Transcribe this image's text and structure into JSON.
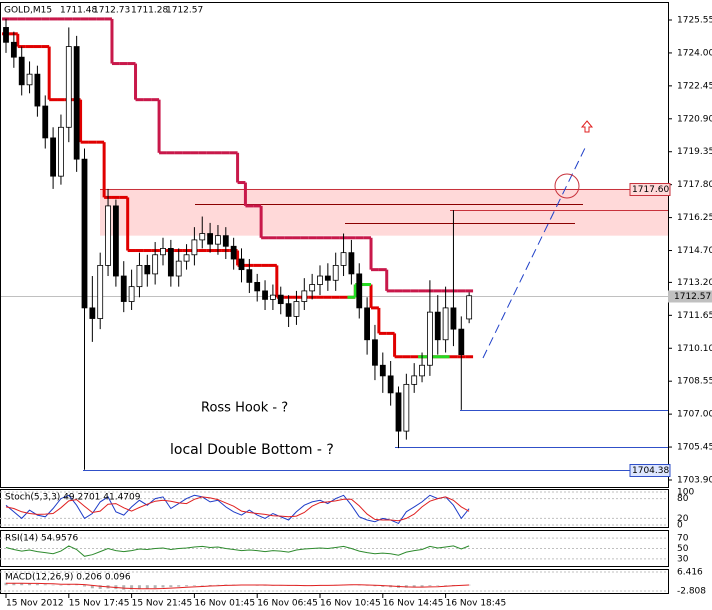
{
  "chart_data": {
    "type": "candlestick",
    "title": "GOLD,M15",
    "header_values": [
      1711.48,
      1712.73,
      1711.28,
      1712.57
    ],
    "categories": [
      "15 Nov 2012",
      null,
      null,
      null,
      null,
      null,
      null,
      null,
      "15 Nov 17:45",
      null,
      null,
      null,
      null,
      null,
      null,
      null,
      "15 Nov 21:45",
      null,
      null,
      null,
      null,
      null,
      null,
      null,
      "16 Nov 01:45",
      null,
      null,
      null,
      null,
      null,
      null,
      null,
      "16 Nov 06:45",
      null,
      null,
      null,
      null,
      null,
      null,
      null,
      "16 Nov 10:45",
      null,
      null,
      null,
      null,
      null,
      null,
      null,
      "16 Nov 14:45",
      null,
      null,
      null,
      null,
      null,
      null,
      null,
      "16 Nov 18:45",
      null,
      null,
      null
    ],
    "open": [
      1725.2,
      1724.5,
      1723.8,
      1722.5,
      1723,
      1721.5,
      1720,
      1718.2,
      1720.5,
      1724.3,
      1719,
      1712,
      1711.5,
      1714,
      1716.8,
      1713.5,
      1712.3,
      1713,
      1714,
      1713.6,
      1714.5,
      1714.8,
      1713.5,
      1714.2,
      1714.5,
      1715.2,
      1715.5,
      1715,
      1715.4,
      1714.9,
      1714.3,
      1713.8,
      1713.2,
      1712.8,
      1712.4,
      1712.6,
      1712.2,
      1711.6,
      1712.3,
      1712.8,
      1713.1,
      1713.5,
      1713.3,
      1714,
      1714.6,
      1713.6,
      1712,
      1710.5,
      1709.3,
      1708.8,
      1708,
      1706.2,
      1708.4,
      1708.8,
      1709.3,
      1711.8,
      1710.5,
      1712,
      1711,
      1711.48
    ],
    "high": [
      1725.6,
      1725.0,
      1724.3,
      1723.6,
      1723.4,
      1722.0,
      1720.5,
      1721.1,
      1725.2,
      1724.8,
      1719.5,
      1713.5,
      1714.6,
      1717.6,
      1717.1,
      1714.2,
      1713.8,
      1714.6,
      1714.5,
      1715.1,
      1715.3,
      1715.2,
      1714.8,
      1715.0,
      1715.8,
      1716.3,
      1716.0,
      1715.9,
      1715.8,
      1715.3,
      1714.8,
      1714.3,
      1713.6,
      1713.3,
      1713.1,
      1713.0,
      1712.6,
      1712.8,
      1713.4,
      1713.6,
      1714.0,
      1714.1,
      1714.6,
      1715.5,
      1715.2,
      1714.1,
      1712.5,
      1711.2,
      1709.9,
      1709.5,
      1708.3,
      1708.9,
      1709.4,
      1709.9,
      1713.3,
      1712.6,
      1713.0,
      1716.6,
      1711.6,
      1712.73
    ],
    "low": [
      1724.0,
      1723.3,
      1722.0,
      1722.1,
      1721.0,
      1719.5,
      1717.6,
      1717.8,
      1719.8,
      1718.4,
      1704.38,
      1710.4,
      1711.0,
      1713.5,
      1713.0,
      1711.8,
      1711.9,
      1712.5,
      1713.0,
      1713.1,
      1714.0,
      1713.0,
      1713.0,
      1713.8,
      1714.0,
      1714.8,
      1714.6,
      1714.5,
      1714.3,
      1713.8,
      1713.2,
      1712.7,
      1712.3,
      1711.9,
      1711.9,
      1711.7,
      1711.1,
      1711.2,
      1711.9,
      1712.4,
      1712.6,
      1712.8,
      1712.8,
      1713.5,
      1713.1,
      1711.5,
      1709.8,
      1708.6,
      1708.0,
      1707.4,
      1705.4,
      1705.8,
      1708.0,
      1708.5,
      1708.8,
      1709.8,
      1709.9,
      1710.2,
      1707.2,
      1711.28
    ],
    "close": [
      1724.5,
      1723.8,
      1722.5,
      1723,
      1721.5,
      1720,
      1718.2,
      1720.5,
      1724.3,
      1719,
      1712,
      1711.5,
      1714,
      1716.8,
      1713.5,
      1712.3,
      1713,
      1714,
      1713.6,
      1714.5,
      1714.8,
      1713.5,
      1714.2,
      1714.5,
      1715.2,
      1715.5,
      1715,
      1715.4,
      1714.9,
      1714.3,
      1713.8,
      1713.2,
      1712.8,
      1712.4,
      1712.6,
      1712.2,
      1711.6,
      1712.3,
      1712.8,
      1713.1,
      1713.5,
      1713.3,
      1714,
      1714.6,
      1713.6,
      1712,
      1710.5,
      1709.3,
      1708.8,
      1708,
      1706.2,
      1708.4,
      1708.8,
      1709.3,
      1711.8,
      1710.5,
      1712,
      1711,
      1709.8,
      1712.57
    ],
    "ylim": [
      1703.57,
      1726.35
    ],
    "yticks": [
      1725.55,
      {
        "value": 1724,
        "label": "1724.00"
      },
      1722.45,
      {
        "value": 1720.9,
        "label": "1720.90"
      },
      1719.35,
      {
        "value": 1717.8,
        "label": "1717.80"
      },
      1716.25,
      {
        "value": 1714.7,
        "label": "1714.70"
      },
      {
        "value": 1713.2,
        "label": "1713.20"
      },
      1711.65,
      {
        "value": 1710.1,
        "label": "1710.10"
      },
      1708.55,
      {
        "value": 1707,
        "label": "1707.00"
      },
      1705.45,
      {
        "value": 1703.9,
        "label": "1703.90"
      }
    ],
    "overlays": [
      {
        "color": "#c8184a",
        "values": [
          1725.6,
          1725.6,
          1725.6,
          1725.6,
          1725.6,
          1725.6,
          1725.6,
          1725.6,
          1725.6,
          1725.6,
          1725.6,
          1725.6,
          1725.6,
          1725.6,
          1723.5,
          1723.5,
          1723.5,
          1721.8,
          1721.8,
          1721.8,
          1719.3,
          1719.3,
          1719.3,
          1719.3,
          1719.3,
          1719.3,
          1719.3,
          1719.3,
          1719.3,
          1719.3,
          1717.9,
          1716.8,
          1716.8,
          1715.3,
          1715.3,
          1715.3,
          1715.3,
          1715.3,
          1715.3,
          1715.3,
          1715.3,
          1715.3,
          1715.3,
          1715.3,
          1715.3,
          1715.3,
          1715.3,
          1713.8,
          1713.8,
          1712.8,
          1712.8,
          1712.8,
          1712.8,
          1712.8,
          1712.8,
          1712.8,
          1712.8,
          1712.8,
          1712.8,
          1712.8
        ]
      },
      {
        "color": "#e00000",
        "values": [
          1724.9,
          1724.9,
          1724.3,
          1724.3,
          1724.3,
          1724.3,
          1721.8,
          1721.8,
          1721.8,
          1721.8,
          1719.8,
          1719.8,
          1719.8,
          1717.2,
          1717.2,
          1717.2,
          1714.7,
          1714.7,
          1714.7,
          1714.7,
          1714.7,
          1714.7,
          1714.7,
          1714.7,
          1714.7,
          1714.7,
          1714.7,
          1714.7,
          1714.7,
          1714.7,
          1714.0,
          1714.0,
          1714.0,
          1714.0,
          1714.0,
          1712.5,
          1712.5,
          1712.5,
          1712.5,
          1712.5,
          1712.5,
          1712.5,
          1712.5,
          1712.5,
          1712.5,
          1713.1,
          1713.1,
          1712.0,
          1710.8,
          1710.8,
          1709.7,
          1709.7,
          1709.7,
          1709.7,
          1709.7,
          1709.7,
          1709.7,
          1709.7,
          1709.7,
          1709.7
        ]
      },
      {
        "color": "#22dd22",
        "values": [
          null,
          null,
          null,
          null,
          null,
          null,
          null,
          null,
          null,
          null,
          null,
          null,
          null,
          null,
          null,
          null,
          null,
          null,
          null,
          null,
          null,
          null,
          null,
          null,
          null,
          null,
          null,
          null,
          null,
          null,
          null,
          null,
          null,
          null,
          null,
          null,
          null,
          null,
          null,
          null,
          null,
          null,
          null,
          null,
          1712.5,
          1713.1,
          1713.1,
          null,
          null,
          null,
          null,
          null,
          null,
          1709.7,
          1709.7,
          1709.7,
          1709.7,
          null,
          null,
          null
        ]
      }
    ],
    "zone": {
      "from": 1715.4,
      "to": 1717.6,
      "color": "#ffd9d9"
    },
    "levels": [
      {
        "value": 1717.6,
        "label": "1717.60",
        "color": "#c8323c"
      },
      {
        "value": 1716.9,
        "color": "#8b0000"
      },
      {
        "value": 1716.6,
        "color": "#c8323c"
      },
      {
        "value": 1716.0,
        "color": "#8b0000"
      },
      {
        "value": 1707.2,
        "color": "#3050c8"
      },
      {
        "value": 1705.45,
        "color": "#3050c8"
      },
      {
        "value": 1704.38,
        "label": "1704.38",
        "color": "#3050c8"
      }
    ],
    "annotations": [
      {
        "text": "Ross Hook - ?",
        "color": "#808080"
      },
      {
        "text": "local Double Bottom  - ?",
        "color": "#1a6b1a"
      }
    ],
    "indicators": [
      {
        "type": "stochastic",
        "title": "Stoch(5,3,3) 49.2701 41.4709",
        "ylim": [
          0,
          100
        ],
        "yticks": [
          100,
          80,
          20,
          0
        ],
        "series": [
          {
            "color": "#1e3cc8",
            "values": [
              60,
              40,
              20,
              45,
              30,
              25,
              50,
              80,
              90,
              60,
              20,
              35,
              70,
              85,
              40,
              30,
              55,
              75,
              60,
              80,
              85,
              50,
              65,
              80,
              90,
              85,
              70,
              75,
              55,
              40,
              30,
              45,
              30,
              20,
              35,
              25,
              15,
              40,
              60,
              70,
              75,
              65,
              80,
              90,
              60,
              25,
              15,
              10,
              20,
              15,
              5,
              40,
              55,
              70,
              90,
              80,
              85,
              60,
              20,
              49.27
            ]
          },
          {
            "color": "#e02020",
            "values": [
              55,
              50,
              40,
              35,
              32,
              33,
              35,
              52,
              73,
              77,
              57,
              38,
              42,
              63,
              65,
              52,
              42,
              53,
              63,
              72,
              75,
              72,
              67,
              65,
              78,
              85,
              82,
              77,
              67,
              57,
              42,
              38,
              35,
              32,
              28,
              27,
              25,
              27,
              38,
              57,
              68,
              70,
              73,
              78,
              78,
              58,
              33,
              17,
              15,
              15,
              13,
              20,
              33,
              55,
              72,
              80,
              85,
              75,
              55,
              41.47
            ]
          }
        ]
      },
      {
        "type": "rsi",
        "title": "RSI(14) 54.9576",
        "ylim": [
          20,
          80
        ],
        "yticks": [
          70,
          50,
          30
        ],
        "series": [
          {
            "color": "#2e8b2e",
            "values": [
              52,
              48,
              45,
              47,
              44,
              42,
              40,
              45,
              55,
              48,
              35,
              38,
              44,
              50,
              46,
              44,
              46,
              49,
              48,
              50,
              51,
              48,
              50,
              51,
              53,
              54,
              52,
              53,
              50,
              48,
              46,
              47,
              46,
              44,
              46,
              45,
              43,
              47,
              49,
              50,
              51,
              50,
              52,
              54,
              50,
              45,
              42,
              40,
              41,
              40,
              37,
              43,
              46,
              48,
              54,
              51,
              53,
              55,
              49,
              54.96
            ]
          }
        ]
      },
      {
        "type": "macd",
        "title": "MACD(12,26,9) 0.206 0.096",
        "ylim": [
          -2.808,
          6.416
        ],
        "yticks": [
          6.416,
          -2.808
        ],
        "histogram_color": "#b4b4b4",
        "histogram": [
          1.2,
          1.1,
          0.9,
          0.8,
          0.6,
          0.4,
          0.2,
          0.1,
          0.4,
          0.5,
          -0.6,
          -1.5,
          -1.8,
          -1.6,
          -1.9,
          -2.2,
          -2.1,
          -1.9,
          -1.7,
          -1.4,
          -1.1,
          -0.9,
          -0.7,
          -0.5,
          -0.3,
          -0.1,
          0.1,
          0.2,
          0.3,
          0.3,
          0.2,
          0.1,
          0,
          -0.1,
          -0.1,
          -0.2,
          -0.3,
          -0.3,
          -0.2,
          -0.1,
          0,
          0.1,
          0.2,
          0.3,
          0.3,
          0.1,
          -0.2,
          -0.5,
          -0.8,
          -1.0,
          -1.3,
          -1.2,
          -1.0,
          -0.8,
          -0.4,
          -0.2,
          0,
          0.1,
          0.1,
          0.206
        ],
        "series": [
          {
            "color": "#e02020",
            "values": [
              1.0,
              1.0,
              1.0,
              0.9,
              0.9,
              0.8,
              0.7,
              0.5,
              0.5,
              0.5,
              0.3,
              -0.1,
              -0.5,
              -0.8,
              -1.1,
              -1.4,
              -1.6,
              -1.7,
              -1.7,
              -1.7,
              -1.6,
              -1.4,
              -1.2,
              -1.0,
              -0.8,
              -0.6,
              -0.4,
              -0.3,
              -0.1,
              0,
              0.1,
              0.1,
              0.1,
              0.1,
              0,
              0,
              -0.1,
              -0.1,
              -0.2,
              -0.2,
              -0.1,
              -0.1,
              0,
              0.1,
              0.2,
              0.2,
              0.1,
              0,
              -0.2,
              -0.4,
              -0.6,
              -0.8,
              -0.9,
              -0.9,
              -0.8,
              -0.7,
              -0.5,
              -0.3,
              -0.1,
              0.096
            ]
          }
        ]
      }
    ]
  }
}
